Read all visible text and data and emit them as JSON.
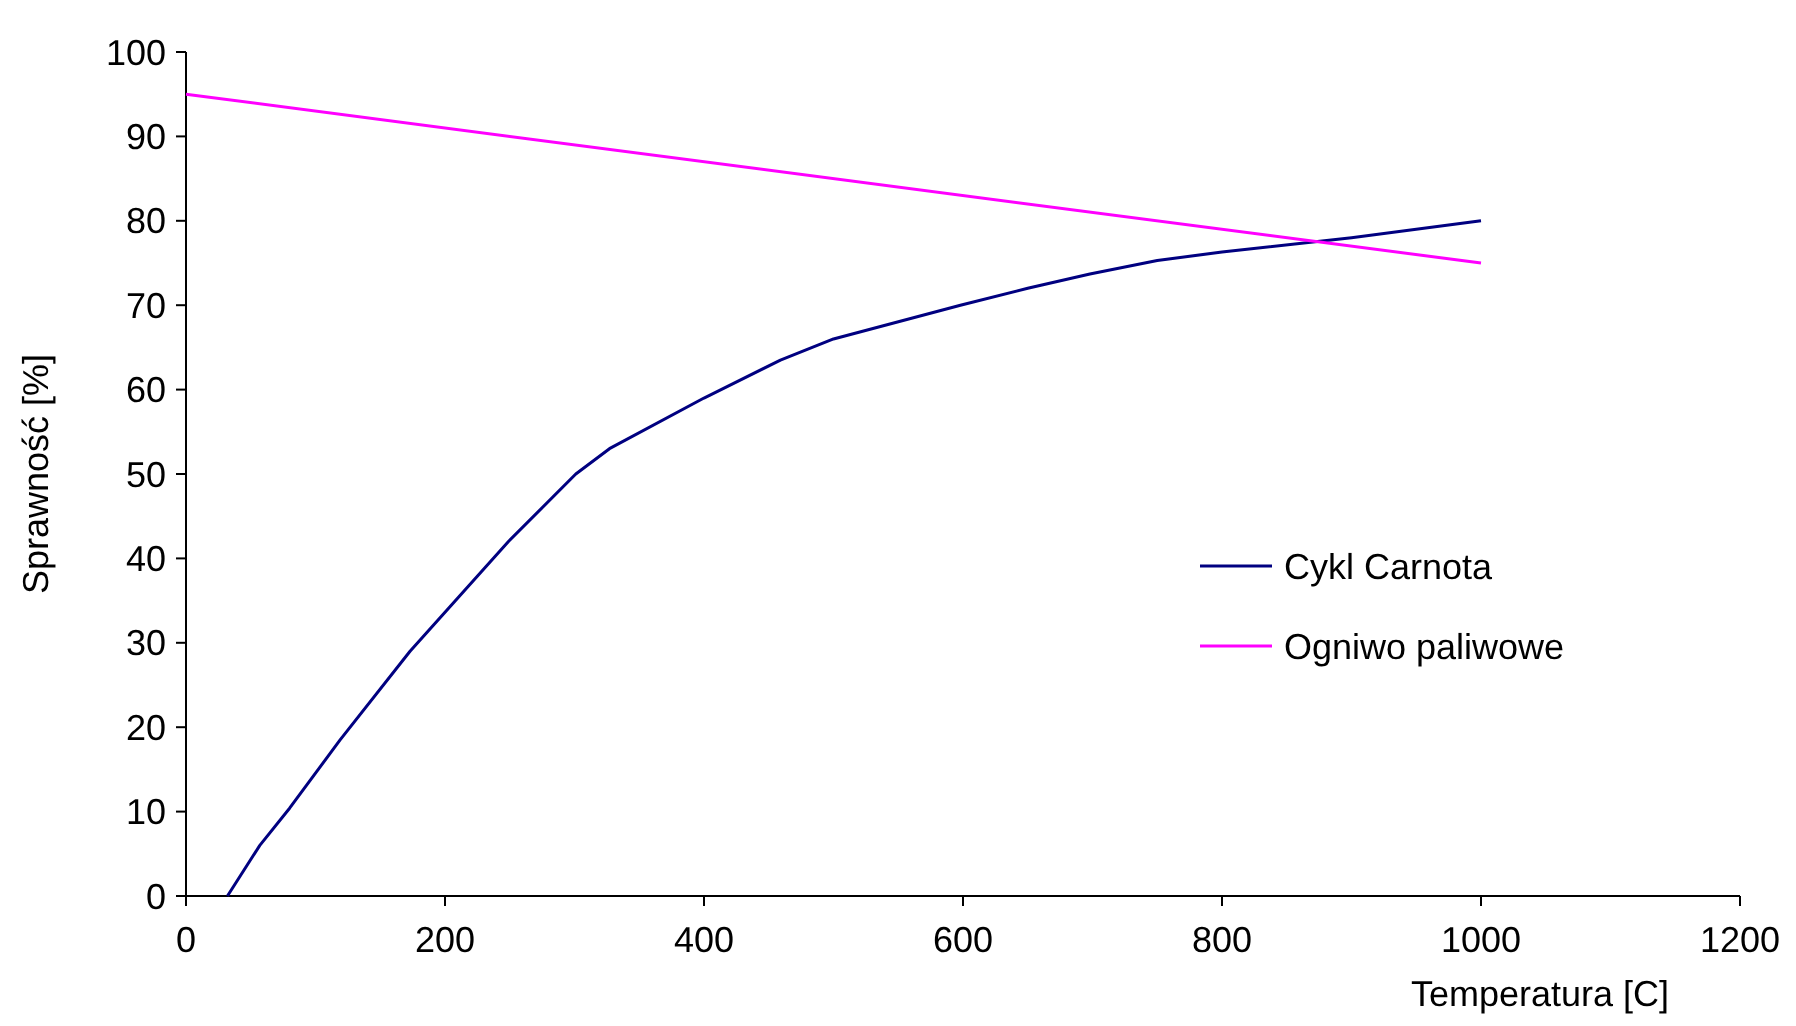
{
  "chart_data": {
    "type": "line",
    "xlabel": "Temperatura [C]",
    "ylabel": "Sprawność [%]",
    "xlim": [
      0,
      1200
    ],
    "xticks": [
      0,
      200,
      400,
      600,
      800,
      1000,
      1200
    ],
    "ylim": [
      0,
      100
    ],
    "yticks": [
      0,
      10,
      20,
      30,
      40,
      50,
      60,
      70,
      80,
      90,
      100
    ],
    "grid": false,
    "legend": "right",
    "marker": "none",
    "line_style": "solid",
    "series": [
      {
        "name": "Cykl Carnota",
        "color": "#000080",
        "x": [
          32,
          57,
          80,
          119,
          173,
          249,
          301,
          327,
          400,
          459,
          500,
          598,
          650,
          698,
          750,
          800,
          900,
          1000
        ],
        "values": [
          0,
          6,
          10.4,
          18.5,
          29,
          42,
          50,
          53,
          59,
          63.5,
          66,
          70,
          72,
          73.7,
          75.3,
          76.3,
          78,
          80
        ]
      },
      {
        "name": "Ogniwo paliwowe",
        "color": "#ff00ff",
        "x": [
          0,
          1000
        ],
        "values": [
          95,
          75
        ]
      }
    ]
  }
}
